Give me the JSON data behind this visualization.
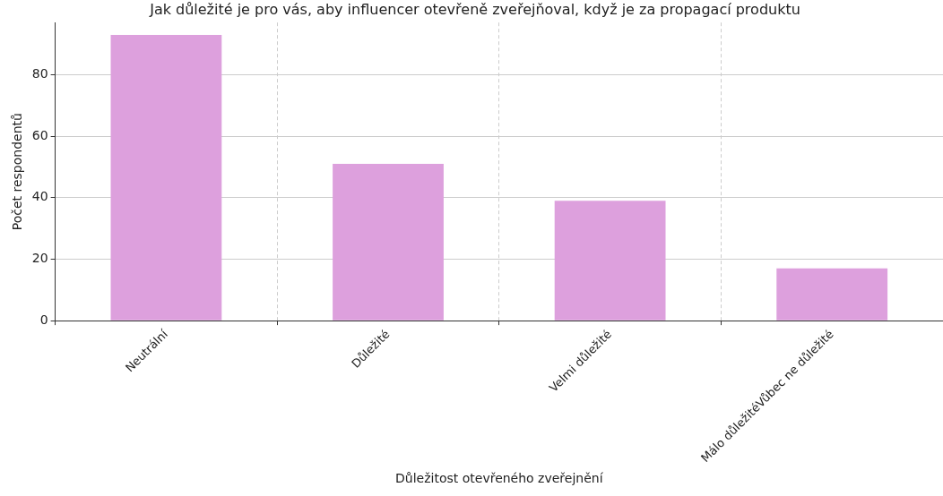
{
  "chart_data": {
    "type": "bar",
    "title": "Jak důležité je pro vás, aby influencer otevřeně zveřejňoval, když je za propagací produktu",
    "xlabel": "Důležitost otevřeného zveřejnění",
    "ylabel": "Počet respondentů",
    "categories": [
      "Neutrální",
      "Důležité",
      "Velmi důležité",
      "Málo důležitéVůbec ne důležité"
    ],
    "values": [
      93,
      51,
      39,
      17
    ],
    "color": "#dda0dd",
    "ylim": [
      0,
      97
    ],
    "yticks": [
      0,
      20,
      40,
      60,
      80
    ],
    "grid": true,
    "legend": false
  }
}
